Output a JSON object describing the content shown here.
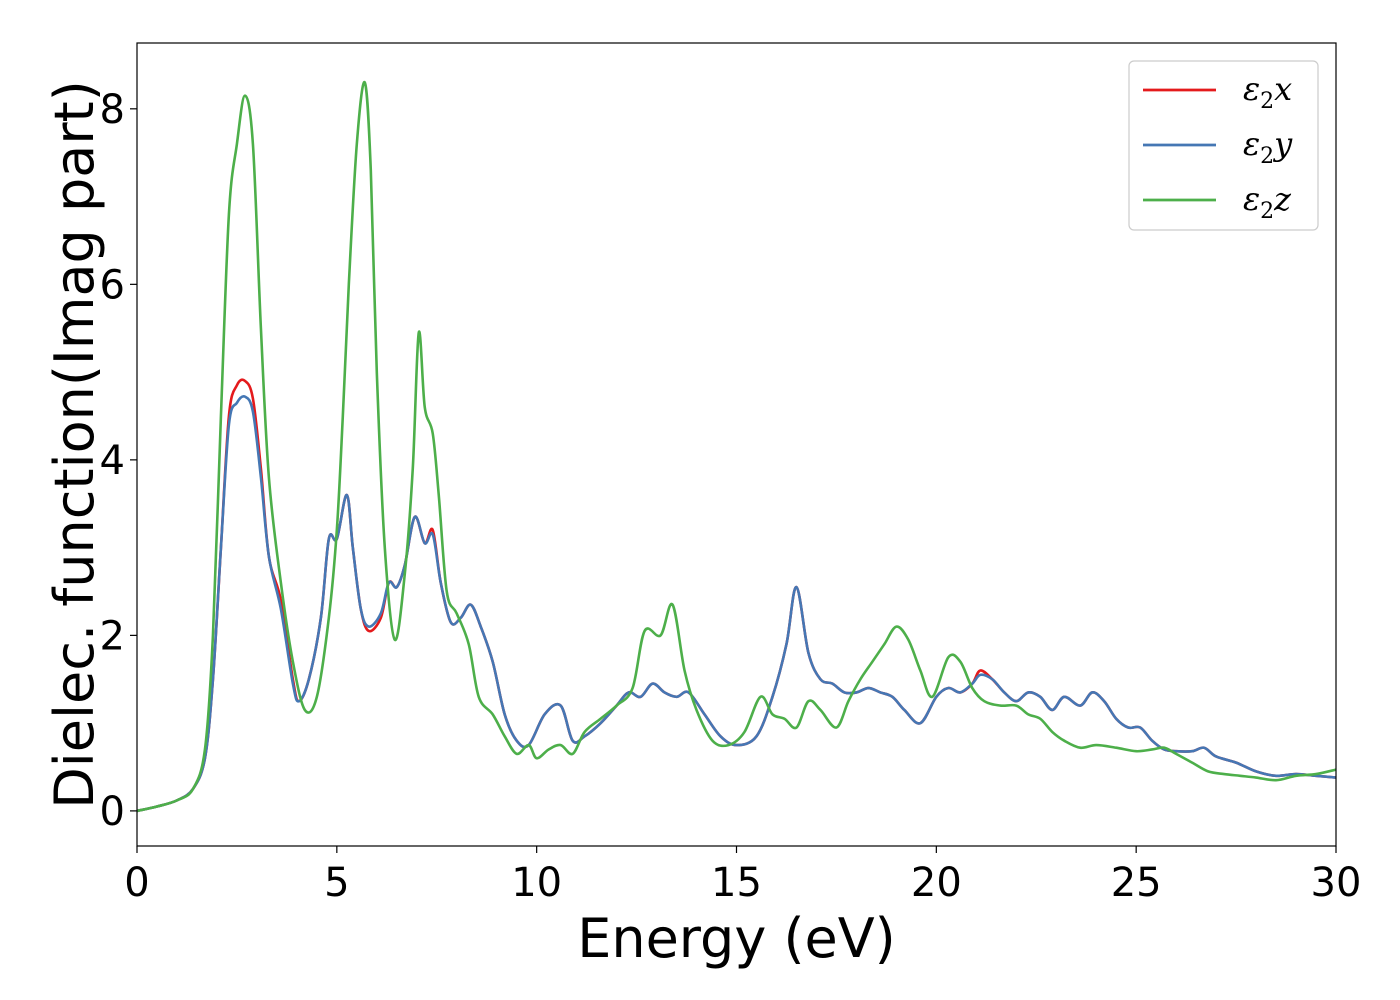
{
  "chart_data": {
    "type": "line",
    "xlabel": "Energy (eV)",
    "ylabel": "Dielec. function(Imag part)",
    "xlim": [
      0,
      30
    ],
    "ylim": [
      -0.4,
      8.75
    ],
    "xticks": [
      0,
      5,
      10,
      15,
      20,
      25,
      30
    ],
    "yticks": [
      0,
      2,
      4,
      6,
      8
    ],
    "grid": false,
    "legend_position": "top-right",
    "series": [
      {
        "name": "ε₂x",
        "legend": {
          "symbol": "ε",
          "sub": "2",
          "var": "x"
        },
        "color": "#e41a1c",
        "points": [
          [
            0,
            0
          ],
          [
            0.5,
            0.05
          ],
          [
            1.0,
            0.12
          ],
          [
            1.4,
            0.25
          ],
          [
            1.7,
            0.6
          ],
          [
            1.9,
            1.5
          ],
          [
            2.1,
            3.0
          ],
          [
            2.3,
            4.5
          ],
          [
            2.5,
            4.85
          ],
          [
            2.7,
            4.9
          ],
          [
            2.9,
            4.7
          ],
          [
            3.1,
            3.9
          ],
          [
            3.3,
            2.9
          ],
          [
            3.6,
            2.4
          ],
          [
            3.9,
            1.5
          ],
          [
            4.05,
            1.25
          ],
          [
            4.3,
            1.5
          ],
          [
            4.6,
            2.2
          ],
          [
            4.8,
            3.1
          ],
          [
            5.0,
            3.1
          ],
          [
            5.25,
            3.6
          ],
          [
            5.4,
            3.0
          ],
          [
            5.6,
            2.3
          ],
          [
            5.8,
            2.05
          ],
          [
            6.1,
            2.2
          ],
          [
            6.3,
            2.6
          ],
          [
            6.5,
            2.55
          ],
          [
            6.7,
            2.8
          ],
          [
            6.95,
            3.35
          ],
          [
            7.2,
            3.05
          ],
          [
            7.4,
            3.2
          ],
          [
            7.6,
            2.6
          ],
          [
            7.85,
            2.15
          ],
          [
            8.1,
            2.2
          ],
          [
            8.35,
            2.35
          ],
          [
            8.6,
            2.1
          ],
          [
            8.9,
            1.7
          ],
          [
            9.2,
            1.1
          ],
          [
            9.5,
            0.8
          ],
          [
            9.8,
            0.75
          ],
          [
            10.2,
            1.1
          ],
          [
            10.6,
            1.2
          ],
          [
            10.9,
            0.8
          ],
          [
            11.2,
            0.85
          ],
          [
            11.6,
            1.0
          ],
          [
            12.0,
            1.2
          ],
          [
            12.3,
            1.35
          ],
          [
            12.6,
            1.3
          ],
          [
            12.9,
            1.45
          ],
          [
            13.2,
            1.35
          ],
          [
            13.5,
            1.3
          ],
          [
            13.8,
            1.35
          ],
          [
            14.2,
            1.1
          ],
          [
            14.6,
            0.85
          ],
          [
            15.0,
            0.75
          ],
          [
            15.5,
            0.85
          ],
          [
            15.9,
            1.3
          ],
          [
            16.25,
            1.9
          ],
          [
            16.5,
            2.55
          ],
          [
            16.8,
            1.8
          ],
          [
            17.1,
            1.5
          ],
          [
            17.4,
            1.45
          ],
          [
            17.7,
            1.35
          ],
          [
            18.0,
            1.35
          ],
          [
            18.3,
            1.4
          ],
          [
            18.6,
            1.35
          ],
          [
            18.9,
            1.3
          ],
          [
            19.2,
            1.15
          ],
          [
            19.6,
            1.0
          ],
          [
            20.0,
            1.3
          ],
          [
            20.3,
            1.4
          ],
          [
            20.6,
            1.35
          ],
          [
            20.9,
            1.45
          ],
          [
            21.1,
            1.6
          ],
          [
            21.4,
            1.5
          ],
          [
            21.7,
            1.35
          ],
          [
            22.0,
            1.25
          ],
          [
            22.3,
            1.35
          ],
          [
            22.6,
            1.3
          ],
          [
            22.9,
            1.15
          ],
          [
            23.2,
            1.3
          ],
          [
            23.6,
            1.2
          ],
          [
            23.9,
            1.35
          ],
          [
            24.2,
            1.25
          ],
          [
            24.5,
            1.05
          ],
          [
            24.8,
            0.95
          ],
          [
            25.1,
            0.95
          ],
          [
            25.4,
            0.8
          ],
          [
            25.7,
            0.7
          ],
          [
            26.0,
            0.68
          ],
          [
            26.4,
            0.68
          ],
          [
            26.7,
            0.72
          ],
          [
            27.0,
            0.62
          ],
          [
            27.5,
            0.55
          ],
          [
            28.0,
            0.45
          ],
          [
            28.5,
            0.4
          ],
          [
            29.0,
            0.42
          ],
          [
            29.5,
            0.4
          ],
          [
            30,
            0.38
          ]
        ]
      },
      {
        "name": "ε₂y",
        "legend": {
          "symbol": "ε",
          "sub": "2",
          "var": "y"
        },
        "color": "#4577b4",
        "points": [
          [
            0,
            0
          ],
          [
            0.5,
            0.05
          ],
          [
            1.0,
            0.12
          ],
          [
            1.4,
            0.25
          ],
          [
            1.7,
            0.6
          ],
          [
            1.9,
            1.5
          ],
          [
            2.1,
            3.0
          ],
          [
            2.3,
            4.4
          ],
          [
            2.5,
            4.65
          ],
          [
            2.7,
            4.72
          ],
          [
            2.9,
            4.55
          ],
          [
            3.1,
            3.8
          ],
          [
            3.3,
            2.9
          ],
          [
            3.6,
            2.3
          ],
          [
            3.9,
            1.45
          ],
          [
            4.05,
            1.25
          ],
          [
            4.3,
            1.5
          ],
          [
            4.6,
            2.2
          ],
          [
            4.8,
            3.1
          ],
          [
            5.0,
            3.1
          ],
          [
            5.25,
            3.6
          ],
          [
            5.4,
            3.0
          ],
          [
            5.6,
            2.3
          ],
          [
            5.8,
            2.1
          ],
          [
            6.1,
            2.25
          ],
          [
            6.3,
            2.6
          ],
          [
            6.5,
            2.55
          ],
          [
            6.7,
            2.8
          ],
          [
            6.95,
            3.35
          ],
          [
            7.2,
            3.05
          ],
          [
            7.4,
            3.15
          ],
          [
            7.6,
            2.6
          ],
          [
            7.85,
            2.15
          ],
          [
            8.1,
            2.2
          ],
          [
            8.35,
            2.35
          ],
          [
            8.6,
            2.1
          ],
          [
            8.9,
            1.7
          ],
          [
            9.2,
            1.1
          ],
          [
            9.5,
            0.8
          ],
          [
            9.8,
            0.75
          ],
          [
            10.2,
            1.1
          ],
          [
            10.6,
            1.2
          ],
          [
            10.9,
            0.8
          ],
          [
            11.2,
            0.85
          ],
          [
            11.6,
            1.0
          ],
          [
            12.0,
            1.2
          ],
          [
            12.3,
            1.35
          ],
          [
            12.6,
            1.3
          ],
          [
            12.9,
            1.45
          ],
          [
            13.2,
            1.35
          ],
          [
            13.5,
            1.3
          ],
          [
            13.8,
            1.35
          ],
          [
            14.2,
            1.1
          ],
          [
            14.6,
            0.85
          ],
          [
            15.0,
            0.75
          ],
          [
            15.5,
            0.85
          ],
          [
            15.9,
            1.3
          ],
          [
            16.25,
            1.9
          ],
          [
            16.5,
            2.55
          ],
          [
            16.8,
            1.8
          ],
          [
            17.1,
            1.5
          ],
          [
            17.4,
            1.45
          ],
          [
            17.7,
            1.35
          ],
          [
            18.0,
            1.35
          ],
          [
            18.3,
            1.4
          ],
          [
            18.6,
            1.35
          ],
          [
            18.9,
            1.3
          ],
          [
            19.2,
            1.15
          ],
          [
            19.6,
            1.0
          ],
          [
            20.0,
            1.3
          ],
          [
            20.3,
            1.4
          ],
          [
            20.6,
            1.35
          ],
          [
            20.9,
            1.45
          ],
          [
            21.1,
            1.55
          ],
          [
            21.4,
            1.5
          ],
          [
            21.7,
            1.35
          ],
          [
            22.0,
            1.25
          ],
          [
            22.3,
            1.35
          ],
          [
            22.6,
            1.3
          ],
          [
            22.9,
            1.15
          ],
          [
            23.2,
            1.3
          ],
          [
            23.6,
            1.2
          ],
          [
            23.9,
            1.35
          ],
          [
            24.2,
            1.25
          ],
          [
            24.5,
            1.05
          ],
          [
            24.8,
            0.95
          ],
          [
            25.1,
            0.95
          ],
          [
            25.4,
            0.8
          ],
          [
            25.7,
            0.7
          ],
          [
            26.0,
            0.68
          ],
          [
            26.4,
            0.68
          ],
          [
            26.7,
            0.72
          ],
          [
            27.0,
            0.62
          ],
          [
            27.5,
            0.55
          ],
          [
            28.0,
            0.45
          ],
          [
            28.5,
            0.4
          ],
          [
            29.0,
            0.42
          ],
          [
            29.5,
            0.4
          ],
          [
            30,
            0.38
          ]
        ]
      },
      {
        "name": "ε₂z",
        "legend": {
          "symbol": "ε",
          "sub": "2",
          "var": "z"
        },
        "color": "#4daf4a",
        "points": [
          [
            0,
            0
          ],
          [
            0.5,
            0.05
          ],
          [
            1.0,
            0.12
          ],
          [
            1.4,
            0.25
          ],
          [
            1.7,
            0.7
          ],
          [
            1.9,
            2.0
          ],
          [
            2.1,
            4.5
          ],
          [
            2.3,
            6.8
          ],
          [
            2.5,
            7.6
          ],
          [
            2.7,
            8.15
          ],
          [
            2.9,
            7.6
          ],
          [
            3.1,
            5.5
          ],
          [
            3.3,
            3.8
          ],
          [
            3.6,
            2.6
          ],
          [
            3.9,
            1.7
          ],
          [
            4.2,
            1.15
          ],
          [
            4.5,
            1.3
          ],
          [
            4.8,
            2.2
          ],
          [
            5.0,
            3.2
          ],
          [
            5.15,
            4.5
          ],
          [
            5.3,
            6.0
          ],
          [
            5.5,
            7.6
          ],
          [
            5.7,
            8.3
          ],
          [
            5.85,
            7.3
          ],
          [
            6.0,
            5.0
          ],
          [
            6.2,
            3.0
          ],
          [
            6.45,
            1.95
          ],
          [
            6.7,
            2.7
          ],
          [
            6.9,
            3.9
          ],
          [
            7.05,
            5.45
          ],
          [
            7.2,
            4.6
          ],
          [
            7.4,
            4.3
          ],
          [
            7.55,
            3.6
          ],
          [
            7.75,
            2.5
          ],
          [
            8.0,
            2.25
          ],
          [
            8.3,
            1.9
          ],
          [
            8.55,
            1.3
          ],
          [
            8.9,
            1.1
          ],
          [
            9.2,
            0.85
          ],
          [
            9.5,
            0.65
          ],
          [
            9.8,
            0.75
          ],
          [
            10.0,
            0.6
          ],
          [
            10.3,
            0.7
          ],
          [
            10.6,
            0.75
          ],
          [
            10.9,
            0.65
          ],
          [
            11.2,
            0.9
          ],
          [
            11.6,
            1.05
          ],
          [
            12.0,
            1.2
          ],
          [
            12.4,
            1.4
          ],
          [
            12.7,
            2.05
          ],
          [
            13.1,
            2.0
          ],
          [
            13.4,
            2.35
          ],
          [
            13.7,
            1.6
          ],
          [
            14.0,
            1.15
          ],
          [
            14.4,
            0.8
          ],
          [
            14.8,
            0.75
          ],
          [
            15.2,
            0.9
          ],
          [
            15.6,
            1.3
          ],
          [
            15.9,
            1.1
          ],
          [
            16.2,
            1.05
          ],
          [
            16.5,
            0.95
          ],
          [
            16.8,
            1.25
          ],
          [
            17.1,
            1.15
          ],
          [
            17.5,
            0.95
          ],
          [
            17.8,
            1.25
          ],
          [
            18.1,
            1.5
          ],
          [
            18.4,
            1.7
          ],
          [
            18.7,
            1.9
          ],
          [
            19.0,
            2.1
          ],
          [
            19.3,
            1.95
          ],
          [
            19.6,
            1.6
          ],
          [
            19.9,
            1.3
          ],
          [
            20.3,
            1.75
          ],
          [
            20.6,
            1.7
          ],
          [
            20.9,
            1.4
          ],
          [
            21.2,
            1.25
          ],
          [
            21.6,
            1.2
          ],
          [
            22.0,
            1.2
          ],
          [
            22.3,
            1.1
          ],
          [
            22.6,
            1.05
          ],
          [
            22.9,
            0.9
          ],
          [
            23.2,
            0.8
          ],
          [
            23.6,
            0.72
          ],
          [
            24.0,
            0.75
          ],
          [
            24.5,
            0.72
          ],
          [
            25.0,
            0.68
          ],
          [
            25.4,
            0.7
          ],
          [
            25.7,
            0.72
          ],
          [
            26.0,
            0.65
          ],
          [
            26.4,
            0.55
          ],
          [
            26.8,
            0.45
          ],
          [
            27.2,
            0.42
          ],
          [
            27.6,
            0.4
          ],
          [
            28.0,
            0.38
          ],
          [
            28.5,
            0.35
          ],
          [
            29.0,
            0.4
          ],
          [
            29.5,
            0.42
          ],
          [
            30,
            0.47
          ]
        ]
      }
    ]
  }
}
